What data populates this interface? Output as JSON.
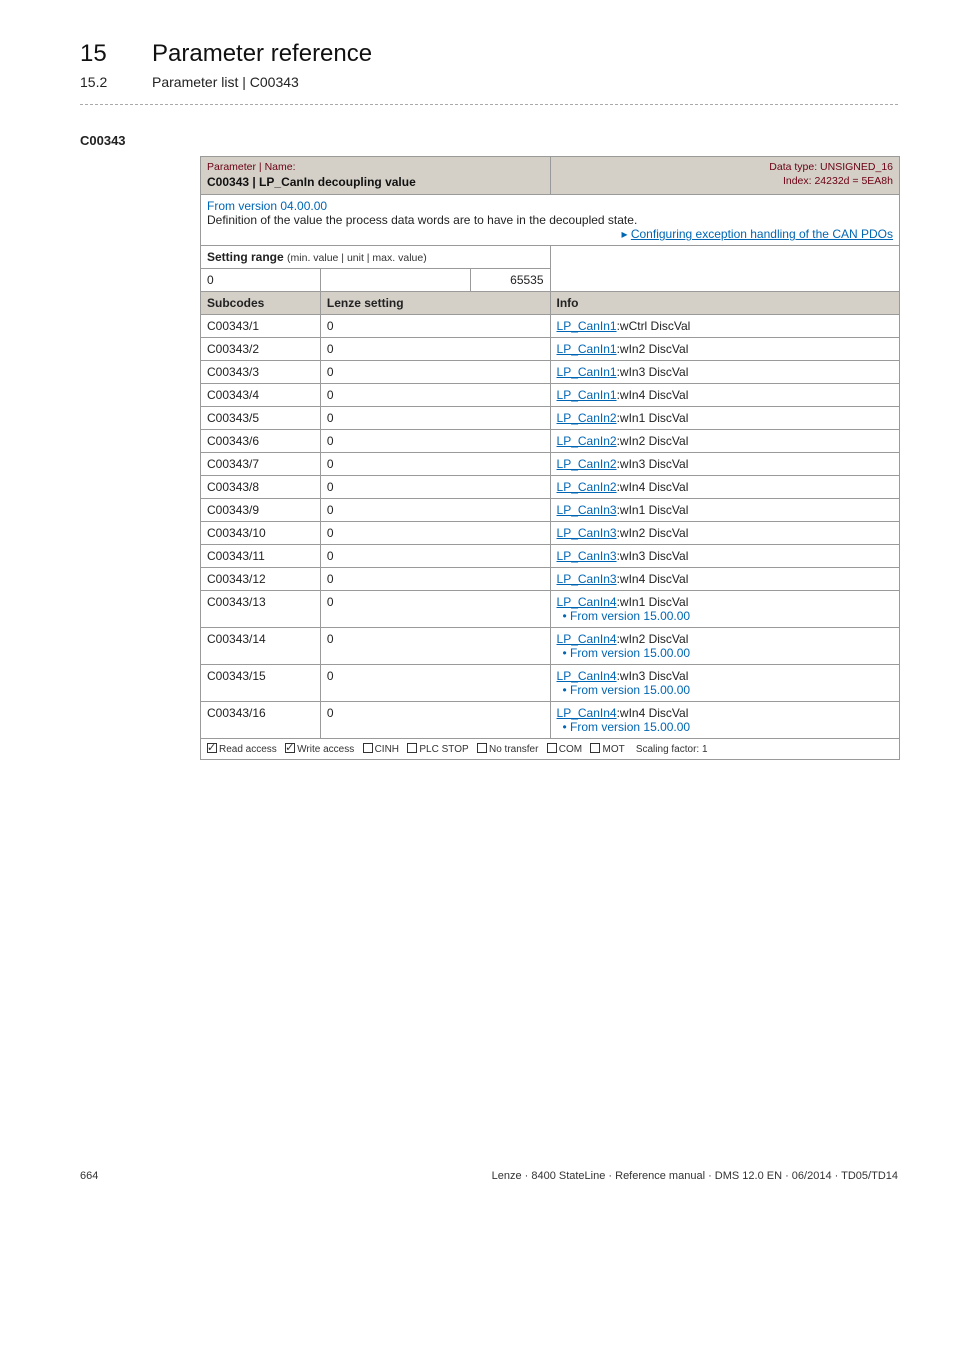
{
  "header": {
    "chapter_num": "15",
    "chapter_title": "Parameter reference",
    "sub_num": "15.2",
    "sub_title": "Parameter list | C00343"
  },
  "anchor": "C00343",
  "param_table": {
    "title_left_label": "Parameter | Name:",
    "title_main": "C00343 | LP_CanIn decoupling value",
    "title_dt": "Data type: UNSIGNED_16",
    "title_idx": "Index: 24232d = 5EA8h",
    "desc_version": "From version 04.00.00",
    "desc_body": "Definition of the value the process data words are to have in the decoupled state.",
    "desc_link": "Configuring exception handling of the CAN PDOs",
    "setting_label": "Setting range",
    "setting_paren": "(min. value | unit | max. value)",
    "lo": "0",
    "hi": "65535",
    "subcodes_hdr": "Subcodes",
    "lenze_hdr": "Lenze setting",
    "info_hdr": "Info",
    "rows": [
      {
        "sc": "C00343/1",
        "lz": "0",
        "info": "LP_CanIn1:wCtrl DiscVal",
        "extra": ""
      },
      {
        "sc": "C00343/2",
        "lz": "0",
        "info": "LP_CanIn1:wIn2 DiscVal",
        "extra": ""
      },
      {
        "sc": "C00343/3",
        "lz": "0",
        "info": "LP_CanIn1:wIn3 DiscVal",
        "extra": ""
      },
      {
        "sc": "C00343/4",
        "lz": "0",
        "info": "LP_CanIn1:wIn4 DiscVal",
        "extra": ""
      },
      {
        "sc": "C00343/5",
        "lz": "0",
        "info": "LP_CanIn2:wIn1 DiscVal",
        "extra": ""
      },
      {
        "sc": "C00343/6",
        "lz": "0",
        "info": "LP_CanIn2:wIn2 DiscVal",
        "extra": ""
      },
      {
        "sc": "C00343/7",
        "lz": "0",
        "info": "LP_CanIn2:wIn3 DiscVal",
        "extra": ""
      },
      {
        "sc": "C00343/8",
        "lz": "0",
        "info": "LP_CanIn2:wIn4 DiscVal",
        "extra": ""
      },
      {
        "sc": "C00343/9",
        "lz": "0",
        "info": "LP_CanIn3:wIn1 DiscVal",
        "extra": ""
      },
      {
        "sc": "C00343/10",
        "lz": "0",
        "info": "LP_CanIn3:wIn2 DiscVal",
        "extra": ""
      },
      {
        "sc": "C00343/11",
        "lz": "0",
        "info": "LP_CanIn3:wIn3 DiscVal",
        "extra": ""
      },
      {
        "sc": "C00343/12",
        "lz": "0",
        "info": "LP_CanIn3:wIn4 DiscVal",
        "extra": ""
      },
      {
        "sc": "C00343/13",
        "lz": "0",
        "info": "LP_CanIn4:wIn1 DiscVal",
        "extra": "• From version 15.00.00"
      },
      {
        "sc": "C00343/14",
        "lz": "0",
        "info": "LP_CanIn4:wIn2 DiscVal",
        "extra": "• From version 15.00.00"
      },
      {
        "sc": "C00343/15",
        "lz": "0",
        "info": "LP_CanIn4:wIn3 DiscVal",
        "extra": "• From version 15.00.00"
      },
      {
        "sc": "C00343/16",
        "lz": "0",
        "info": "LP_CanIn4:wIn4 DiscVal",
        "extra": "• From version 15.00.00"
      }
    ],
    "foot_items": {
      "read": "Read access",
      "write": "Write access",
      "cinh": "CINH",
      "plc": "PLC STOP",
      "notr": "No transfer",
      "com": "COM",
      "mot": "MOT",
      "scale": "Scaling factor: 1"
    }
  },
  "footer": {
    "page": "664",
    "right": "Lenze · 8400 StateLine · Reference manual · DMS 12.0 EN · 06/2014 · TD05/TD14"
  }
}
